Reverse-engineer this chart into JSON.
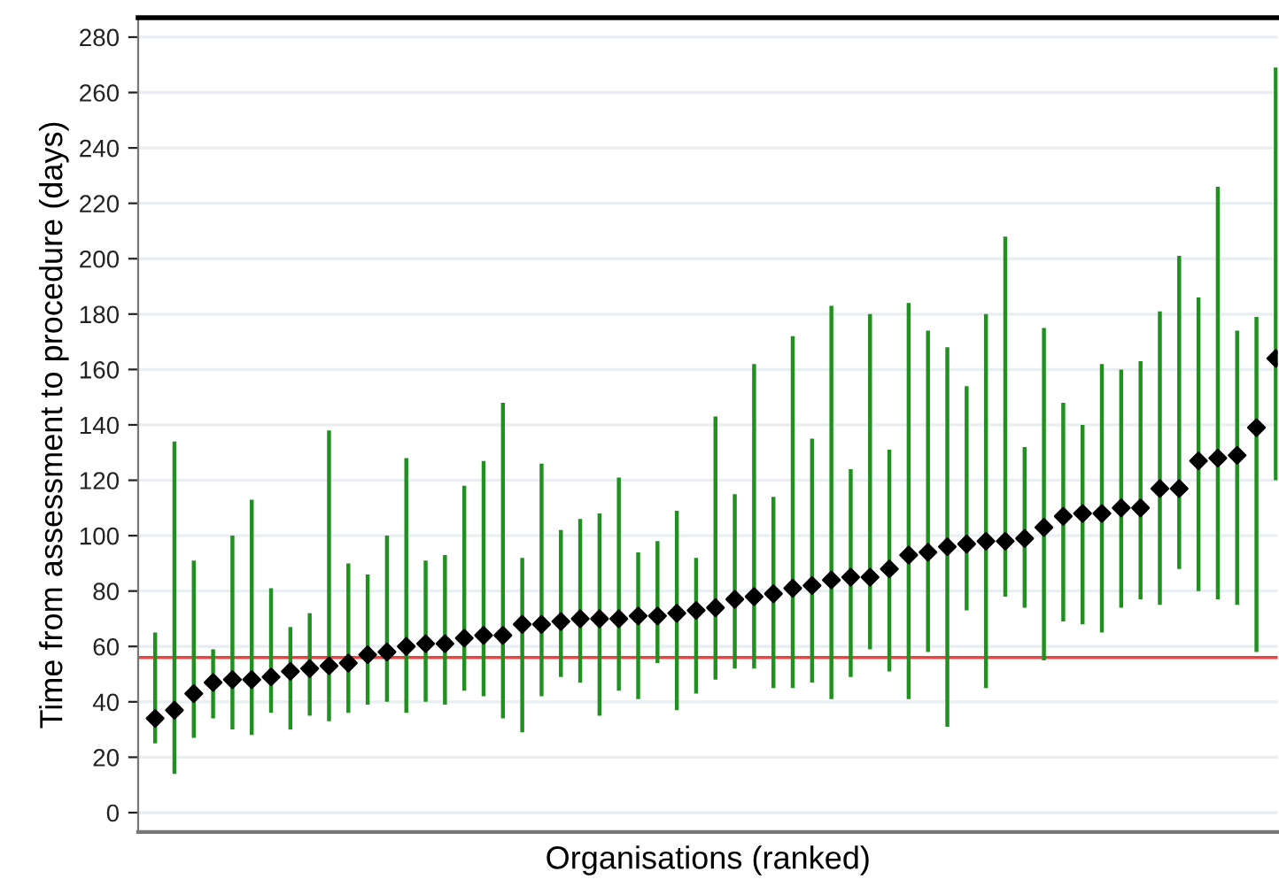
{
  "chart_data": {
    "type": "scatter",
    "xlabel": "Organisations (ranked)",
    "ylabel": "Time from assessment to procedure (days)",
    "categories": [
      null,
      null,
      null,
      null,
      null,
      null,
      null,
      null,
      null,
      null,
      null,
      null,
      null,
      null,
      null,
      null,
      null,
      null,
      null,
      null,
      null,
      null,
      null,
      null,
      null,
      null,
      null,
      null,
      null,
      null,
      null,
      null,
      null,
      null,
      null,
      null,
      null,
      null,
      null,
      null,
      null,
      null,
      null,
      null,
      null,
      null,
      null,
      null,
      null,
      null,
      null,
      null,
      null,
      null,
      null,
      null,
      null,
      null,
      null
    ],
    "series": [
      {
        "color": "#000000",
        "values": [
          34,
          37,
          43,
          47,
          48,
          48,
          49,
          51,
          52,
          53,
          54,
          57,
          58,
          60,
          61,
          61,
          63,
          64,
          64,
          68,
          68,
          69,
          70,
          70,
          70,
          71,
          71,
          72,
          73,
          74,
          77,
          78,
          79,
          81,
          82,
          84,
          85,
          85,
          88,
          93,
          94,
          96,
          97,
          98,
          98,
          99,
          103,
          107,
          108,
          108,
          110,
          110,
          117,
          117,
          127,
          128,
          129,
          139,
          164
        ],
        "errors": [
          [
            25,
            65
          ],
          [
            14,
            134
          ],
          [
            27,
            91
          ],
          [
            34,
            59
          ],
          [
            30,
            100
          ],
          [
            28,
            113
          ],
          [
            36,
            81
          ],
          [
            30,
            67
          ],
          [
            35,
            72
          ],
          [
            33,
            138
          ],
          [
            36,
            90
          ],
          [
            39,
            86
          ],
          [
            40,
            100
          ],
          [
            36,
            128
          ],
          [
            40,
            91
          ],
          [
            39,
            93
          ],
          [
            44,
            118
          ],
          [
            42,
            127
          ],
          [
            34,
            148
          ],
          [
            29,
            92
          ],
          [
            42,
            126
          ],
          [
            49,
            102
          ],
          [
            47,
            106
          ],
          [
            35,
            108
          ],
          [
            44,
            121
          ],
          [
            41,
            94
          ],
          [
            54,
            98
          ],
          [
            37,
            109
          ],
          [
            43,
            92
          ],
          [
            48,
            143
          ],
          [
            52,
            115
          ],
          [
            52,
            162
          ],
          [
            45,
            114
          ],
          [
            45,
            172
          ],
          [
            47,
            135
          ],
          [
            41,
            183
          ],
          [
            49,
            124
          ],
          [
            59,
            180
          ],
          [
            51,
            131
          ],
          [
            41,
            184
          ],
          [
            58,
            174
          ],
          [
            31,
            168
          ],
          [
            73,
            154
          ],
          [
            45,
            180
          ],
          [
            78,
            208
          ],
          [
            74,
            132
          ],
          [
            55,
            175
          ],
          [
            69,
            148
          ],
          [
            68,
            140
          ],
          [
            65,
            162
          ],
          [
            74,
            160
          ],
          [
            77,
            163
          ],
          [
            75,
            181
          ],
          [
            88,
            201
          ],
          [
            80,
            186
          ],
          [
            77,
            226
          ],
          [
            75,
            174
          ],
          [
            58,
            179
          ],
          [
            120,
            269
          ]
        ]
      }
    ],
    "marker": "diamond",
    "ylim": [
      -7,
      287
    ],
    "yticks": [
      0,
      20,
      40,
      60,
      80,
      100,
      120,
      140,
      160,
      180,
      200,
      220,
      240,
      260,
      280
    ],
    "grid": "y",
    "ref_lines": [
      {
        "axis": "y",
        "value": 56,
        "color": "#f04040"
      }
    ],
    "tick_labels": "y"
  }
}
